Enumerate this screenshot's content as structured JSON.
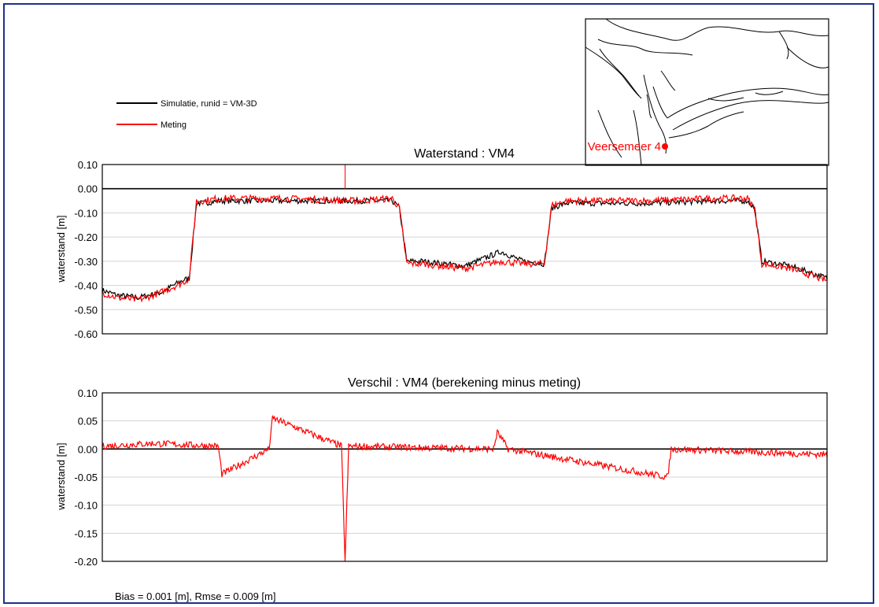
{
  "colors": {
    "frame": "#1f2f8f",
    "simulation": "#000000",
    "measurement": "#ff0000",
    "grid": "#d3d3d3",
    "station": "#ff0000"
  },
  "legend": {
    "items": [
      {
        "label": "Simulatie, runid = VM-3D",
        "color": "#000000"
      },
      {
        "label": "Meting",
        "color": "#ff0000"
      }
    ]
  },
  "map": {
    "station_label": "Veersemeer 4"
  },
  "stats": {
    "text": "Bias = 0.001 [m], Rmse = 0.009 [m]"
  },
  "chart_data": [
    {
      "type": "line",
      "title": "Waterstand : VM4",
      "xlabel": "",
      "ylabel": "waterstand [m]",
      "ylim": [
        -0.6,
        0.1
      ],
      "yticks": [
        "0.10",
        "0.00",
        "-0.10",
        "-0.20",
        "-0.30",
        "-0.40",
        "-0.50",
        "-0.60"
      ],
      "grid": true,
      "xlim": [
        0,
        1
      ],
      "series": [
        {
          "name": "Simulatie, runid = VM-3D",
          "color": "#000000",
          "x": [
            0,
            0.02,
            0.05,
            0.08,
            0.11,
            0.12,
            0.13,
            0.14,
            0.16,
            0.25,
            0.35,
            0.4,
            0.41,
            0.42,
            0.44,
            0.5,
            0.55,
            0.58,
            0.61,
            0.62,
            0.64,
            0.75,
            0.85,
            0.89,
            0.9,
            0.91,
            0.95,
            1.0
          ],
          "y": [
            -0.42,
            -0.44,
            -0.45,
            -0.43,
            -0.38,
            -0.37,
            -0.06,
            -0.06,
            -0.05,
            -0.05,
            -0.05,
            -0.05,
            -0.08,
            -0.3,
            -0.3,
            -0.32,
            -0.26,
            -0.3,
            -0.31,
            -0.08,
            -0.06,
            -0.06,
            -0.05,
            -0.05,
            -0.08,
            -0.3,
            -0.32,
            -0.37
          ]
        },
        {
          "name": "Meting",
          "color": "#ff0000",
          "x": [
            0,
            0.02,
            0.05,
            0.08,
            0.11,
            0.12,
            0.13,
            0.14,
            0.16,
            0.25,
            0.35,
            0.4,
            0.41,
            0.42,
            0.44,
            0.5,
            0.55,
            0.58,
            0.61,
            0.62,
            0.64,
            0.75,
            0.85,
            0.89,
            0.9,
            0.91,
            0.95,
            1.0
          ],
          "y": [
            -0.43,
            -0.45,
            -0.46,
            -0.43,
            -0.39,
            -0.37,
            -0.05,
            -0.05,
            -0.04,
            -0.04,
            -0.05,
            -0.04,
            -0.08,
            -0.31,
            -0.31,
            -0.33,
            -0.3,
            -0.31,
            -0.31,
            -0.07,
            -0.05,
            -0.05,
            -0.04,
            -0.04,
            -0.08,
            -0.31,
            -0.33,
            -0.38
          ]
        }
      ],
      "annotations": [
        {
          "x": 0.335,
          "y": 0.1,
          "note": "spike"
        }
      ]
    },
    {
      "type": "line",
      "title": "Verschil : VM4 (berekening minus meting)",
      "xlabel": "",
      "ylabel": "waterstand [m]",
      "ylim": [
        -0.2,
        0.1
      ],
      "yticks": [
        "0.10",
        "0.05",
        "0.00",
        "-0.05",
        "-0.10",
        "-0.15",
        "-0.20"
      ],
      "grid": true,
      "xlim": [
        0,
        1
      ],
      "series": [
        {
          "name": "",
          "color": "#ff0000",
          "x": [
            0,
            0.07,
            0.16,
            0.165,
            0.23,
            0.235,
            0.33,
            0.335,
            0.34,
            0.54,
            0.545,
            0.56,
            0.78,
            0.785,
            1.0
          ],
          "y": [
            0.005,
            0.01,
            0.005,
            -0.045,
            0.0,
            0.055,
            0.005,
            -0.2,
            0.005,
            0.0,
            0.03,
            0.0,
            -0.05,
            0.0,
            -0.01
          ]
        }
      ]
    }
  ]
}
